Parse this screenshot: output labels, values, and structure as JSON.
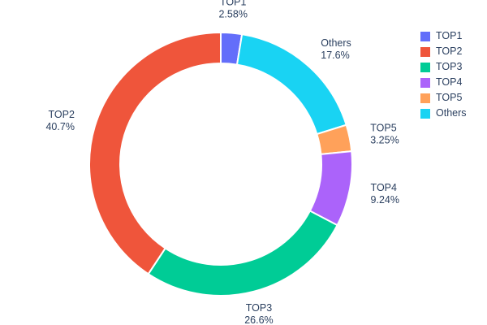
{
  "chart_data": {
    "type": "pie",
    "title": "",
    "hole": 0.77,
    "grid": false,
    "legend_position": "right",
    "categories": [
      "TOP1",
      "TOP2",
      "TOP3",
      "TOP4",
      "TOP5",
      "Others"
    ],
    "values": [
      2.58,
      40.7,
      26.6,
      9.24,
      3.25,
      17.6
    ],
    "value_labels": {
      "TOP1": "2.58%",
      "TOP2": "40.7%",
      "TOP3": "26.6%",
      "TOP4": "9.24%",
      "TOP5": "3.25%",
      "Others": "17.6%"
    },
    "colors": {
      "TOP1": "#636EFA",
      "TOP2": "#EF553B",
      "TOP3": "#00CC96",
      "TOP4": "#AB63FA",
      "TOP5": "#FFA15A",
      "Others": "#19D3F3"
    },
    "slice_order_clockwise": [
      "TOP1",
      "Others",
      "TOP5",
      "TOP4",
      "TOP3",
      "TOP2"
    ],
    "legend_entries": [
      "TOP1",
      "TOP2",
      "TOP3",
      "TOP4",
      "TOP5",
      "Others"
    ],
    "text_color": "#2a3f5f"
  }
}
